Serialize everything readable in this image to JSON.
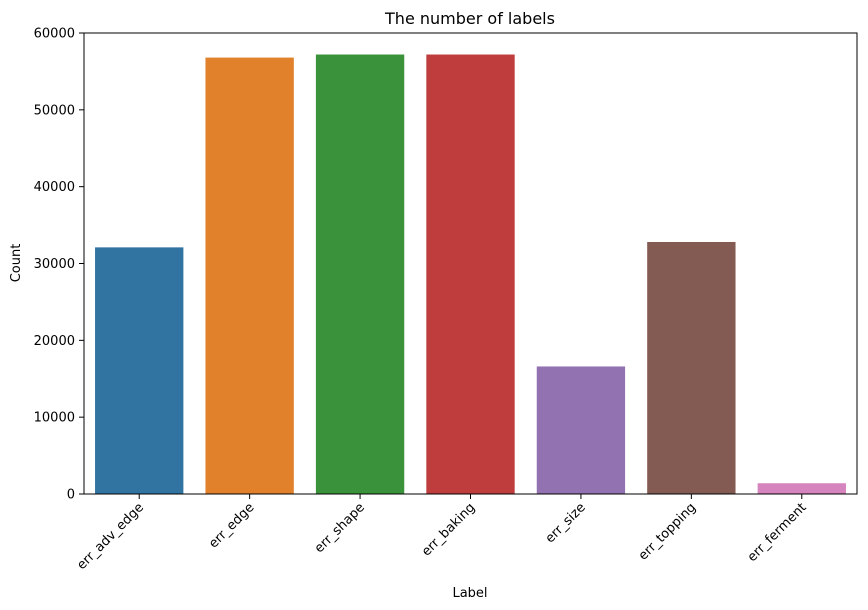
{
  "chart_data": {
    "type": "bar",
    "title": "The number of labels",
    "xlabel": "Label",
    "ylabel": "Count",
    "categories": [
      "err_adv_edge",
      "err_edge",
      "err_shape",
      "err_baking",
      "err_size",
      "err_topping",
      "err_ferment"
    ],
    "values": [
      32100,
      56800,
      57200,
      57200,
      16600,
      32800,
      1400
    ],
    "colors": [
      "#3274a1",
      "#e1812c",
      "#3a923a",
      "#c03d3e",
      "#9372b2",
      "#845b53",
      "#d684bd"
    ],
    "ylim": [
      0,
      60000
    ],
    "yticks": [
      0,
      10000,
      20000,
      30000,
      40000,
      50000,
      60000
    ],
    "ytick_labels": [
      "0",
      "10000",
      "20000",
      "30000",
      "40000",
      "50000",
      "60000"
    ],
    "grid": false,
    "xtick_rotation_deg": 45
  }
}
